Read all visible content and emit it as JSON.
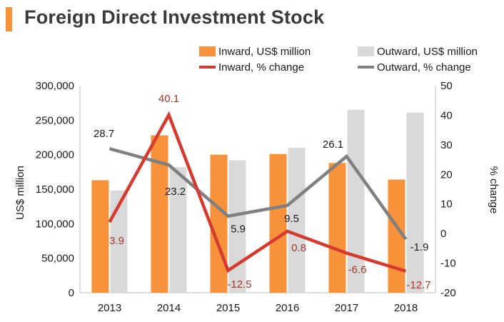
{
  "title": "Foreign Direct Investment Stock",
  "colors": {
    "accent": "#f7923a",
    "inward_bar": "#f7923a",
    "outward_bar": "#d9d9d9",
    "inward_line": "#d63a2f",
    "outward_line": "#808080",
    "inward_label": "#a8342a",
    "outward_label": "#1a1a1a"
  },
  "chart_data": {
    "type": "bar+line",
    "categories": [
      "2013",
      "2014",
      "2015",
      "2016",
      "2017",
      "2018"
    ],
    "bar_series": [
      {
        "name": "Inward, US$ million",
        "values": [
          163000,
          228000,
          200000,
          201000,
          188000,
          164000
        ]
      },
      {
        "name": "Outward, US$ million",
        "values": [
          148000,
          182000,
          192000,
          210000,
          265000,
          261000
        ]
      }
    ],
    "line_series": [
      {
        "name": "Inward, % change",
        "values": [
          3.9,
          40.1,
          -12.5,
          0.8,
          -6.6,
          -12.7
        ],
        "labels": [
          "3.9",
          "40.1",
          "-12.5",
          "0.8",
          "-6.6",
          "-12.7"
        ]
      },
      {
        "name": "Outward, % change",
        "values": [
          28.7,
          23.2,
          5.9,
          9.5,
          26.1,
          -1.9
        ],
        "labels": [
          "28.7",
          "23.2",
          "5.9",
          "9.5",
          "26.1",
          "-1.9"
        ]
      }
    ],
    "ylabel": "US$ million",
    "y2label": "% change",
    "ylim": [
      0,
      300000
    ],
    "y2lim": [
      -20,
      50
    ],
    "yticks": [
      "300,000",
      "250,000",
      "200,000",
      "150,000",
      "100,000",
      "50,000",
      "0"
    ],
    "y2ticks": [
      "50",
      "40",
      "30",
      "20",
      "10",
      "0",
      "-10",
      "-20"
    ],
    "legend_position": "top"
  }
}
